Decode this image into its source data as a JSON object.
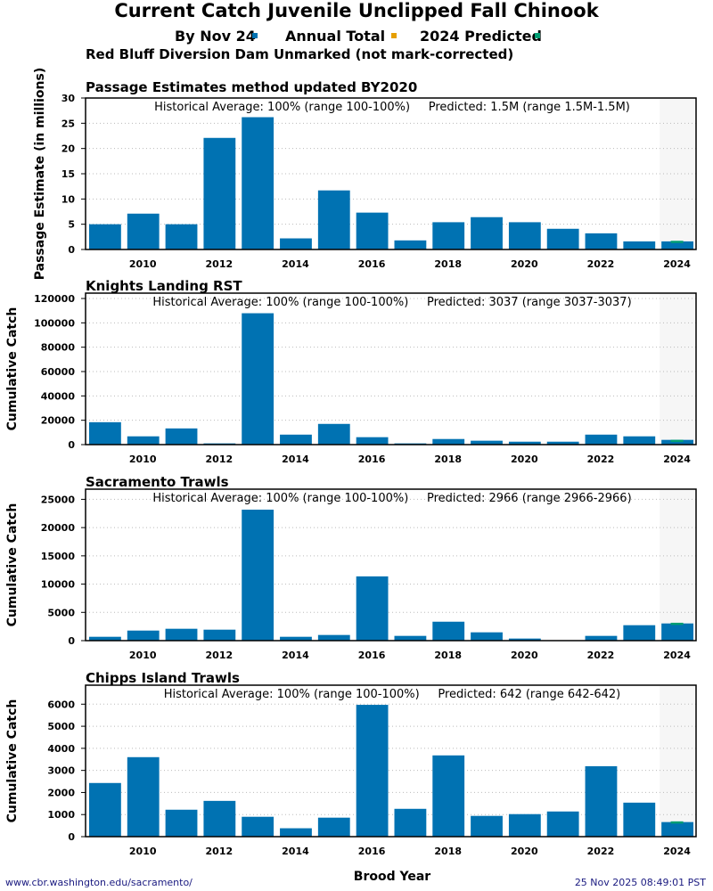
{
  "title": "Current Catch Juvenile Unclipped Fall Chinook",
  "legend": [
    {
      "label": "By Nov 24",
      "color": "#0072B2"
    },
    {
      "label": "Annual Total",
      "color": "#E69F00"
    },
    {
      "label": "2024 Predicted",
      "color": "#009E73"
    }
  ],
  "xlabel": "Brood Year",
  "footer": {
    "url": "www.cbr.washington.edu/sacramento/",
    "timestamp": "25 Nov 2025 08:49:01 PST"
  },
  "chart_data": [
    {
      "type": "bar",
      "title": "Red Bluff Diversion Dam Unmarked (not mark-corrected)",
      "subtitle": "Passage Estimates method updated BY2020",
      "annotation": "Historical Average: 100% (range 100-100%)     Predicted: 1.5M (range 1.5M-1.5M)",
      "ylabel": "Passage Estimate (in millions)",
      "ylim": [
        0,
        30
      ],
      "yticks": [
        0,
        5,
        10,
        15,
        20,
        25,
        30
      ],
      "categories": [
        2009,
        2010,
        2011,
        2012,
        2013,
        2014,
        2015,
        2016,
        2017,
        2018,
        2019,
        2020,
        2021,
        2022,
        2023,
        2024
      ],
      "xticks": [
        2010,
        2012,
        2014,
        2016,
        2018,
        2020,
        2022,
        2024
      ],
      "values": [
        5.0,
        7.1,
        5.0,
        22.1,
        26.2,
        2.2,
        11.7,
        7.3,
        1.8,
        5.4,
        6.4,
        5.4,
        4.1,
        3.2,
        1.6,
        1.6
      ],
      "predicted": 1.5
    },
    {
      "type": "bar",
      "title": "Knights Landing RST",
      "annotation": "Historical Average: 100% (range 100-100%)     Predicted: 3037 (range 3037-3037)",
      "ylabel": "Cumulative Catch",
      "ylim": [
        0,
        124400
      ],
      "yticks": [
        0,
        20000,
        40000,
        60000,
        80000,
        100000,
        120000
      ],
      "categories": [
        2009,
        2010,
        2011,
        2012,
        2013,
        2014,
        2015,
        2016,
        2017,
        2018,
        2019,
        2020,
        2021,
        2022,
        2023,
        2024
      ],
      "xticks": [
        2010,
        2012,
        2014,
        2016,
        2018,
        2020,
        2022,
        2024
      ],
      "values": [
        18400,
        6800,
        13300,
        1000,
        107900,
        8200,
        17000,
        6100,
        1000,
        4600,
        3200,
        2400,
        2400,
        8200,
        6800,
        3900
      ],
      "predicted": 3037
    },
    {
      "type": "bar",
      "title": "Sacramento Trawls",
      "annotation": "Historical Average: 100% (range 100-100%)     Predicted: 2966 (range 2966-2966)",
      "ylabel": "Cumulative Catch",
      "ylim": [
        0,
        26800
      ],
      "yticks": [
        0,
        5000,
        10000,
        15000,
        20000,
        25000
      ],
      "categories": [
        2009,
        2010,
        2011,
        2012,
        2013,
        2014,
        2015,
        2016,
        2017,
        2018,
        2019,
        2020,
        2021,
        2022,
        2023,
        2024
      ],
      "xticks": [
        2010,
        2012,
        2014,
        2016,
        2018,
        2020,
        2022,
        2024
      ],
      "values": [
        680,
        1780,
        2100,
        1940,
        23170,
        680,
        1000,
        11370,
        840,
        3350,
        1470,
        370,
        0,
        840,
        2730,
        3040
      ],
      "predicted": 2966
    },
    {
      "type": "bar",
      "title": "Chipps Island Trawls",
      "annotation": "Historical Average: 100% (range 100-100%)     Predicted: 642 (range 642-642)",
      "ylabel": "Cumulative Catch",
      "ylim": [
        0,
        6860
      ],
      "yticks": [
        0,
        1000,
        2000,
        3000,
        4000,
        5000,
        6000
      ],
      "categories": [
        2009,
        2010,
        2011,
        2012,
        2013,
        2014,
        2015,
        2016,
        2017,
        2018,
        2019,
        2020,
        2021,
        2022,
        2023,
        2024
      ],
      "xticks": [
        2010,
        2012,
        2014,
        2016,
        2018,
        2020,
        2022,
        2024
      ],
      "values": [
        2430,
        3600,
        1220,
        1620,
        900,
        380,
        860,
        5970,
        1260,
        3680,
        940,
        1020,
        1140,
        3190,
        1540,
        660
      ],
      "predicted": 642
    }
  ]
}
